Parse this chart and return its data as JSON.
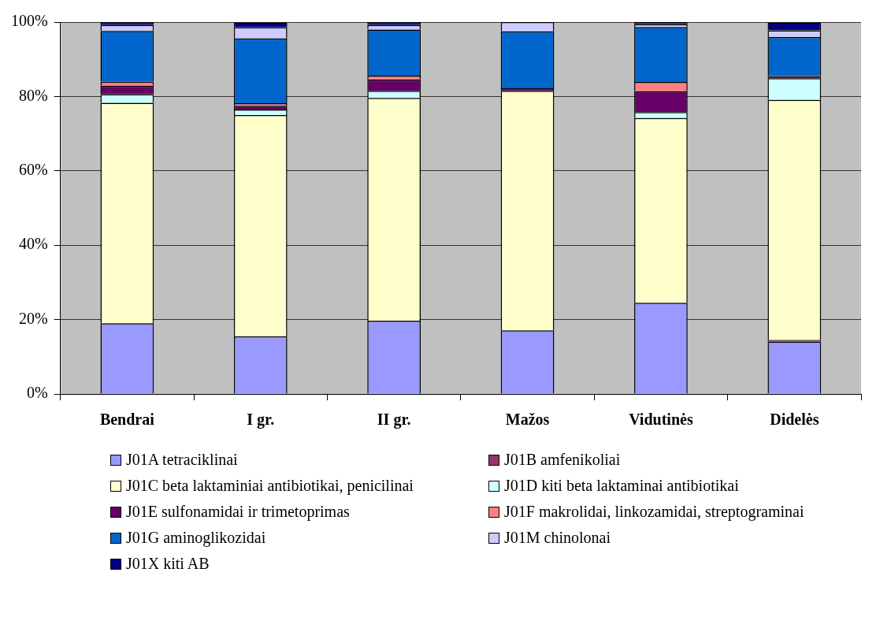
{
  "chart_data": {
    "type": "bar",
    "stacked": true,
    "categories": [
      "Bendrai",
      "I gr.",
      "II gr.",
      "Mažos",
      "Vidutinės",
      "Didelės"
    ],
    "ylim": [
      0,
      100
    ],
    "yticks": [
      {
        "value": 0,
        "label": "0%"
      },
      {
        "value": 20,
        "label": "20%"
      },
      {
        "value": 40,
        "label": "40%"
      },
      {
        "value": 60,
        "label": "60%"
      },
      {
        "value": 80,
        "label": "80%"
      },
      {
        "value": 100,
        "label": "100%"
      }
    ],
    "grid": "y",
    "legend": "bottom",
    "series": [
      {
        "name": "J01A tetraciklinai",
        "color": "#9999ff",
        "values": [
          19,
          15.5,
          19.7,
          17.1,
          24.5,
          14.1
        ]
      },
      {
        "name": "J01B amfenikoliai",
        "color": "#993366",
        "values": [
          0,
          0,
          0,
          0,
          0,
          0.4
        ]
      },
      {
        "name": "J01C beta laktaminiai antibiotikai, penicilinai",
        "color": "#ffffcc",
        "values": [
          59.3,
          59.5,
          59.9,
          64.4,
          49.7,
          64.6
        ]
      },
      {
        "name": "J01D kiti beta laktaminai antibiotikai",
        "color": "#ccffff",
        "values": [
          2.3,
          1.5,
          1.9,
          0,
          1.6,
          5.8
        ]
      },
      {
        "name": "J01E sulfonamidai ir trimetoprimas",
        "color": "#660066",
        "values": [
          2.3,
          1,
          3.1,
          0.7,
          5.6,
          0.6
        ]
      },
      {
        "name": "J01F makrolidai, linkozamidai, streptograminai",
        "color": "#ff8080",
        "values": [
          1.1,
          0.7,
          1,
          0,
          2.5,
          0
        ]
      },
      {
        "name": "J01G aminoglikozidai",
        "color": "#0066cc",
        "values": [
          13.6,
          17.4,
          12.4,
          15.3,
          14.8,
          10.5
        ]
      },
      {
        "name": "J01M chinolonai",
        "color": "#ccccff",
        "values": [
          1.6,
          3,
          1.2,
          2.5,
          0.7,
          1.8
        ]
      },
      {
        "name": "J01X kiti AB",
        "color": "#000080",
        "values": [
          0.8,
          1.3,
          0.8,
          0,
          0.6,
          2.1
        ]
      }
    ]
  }
}
